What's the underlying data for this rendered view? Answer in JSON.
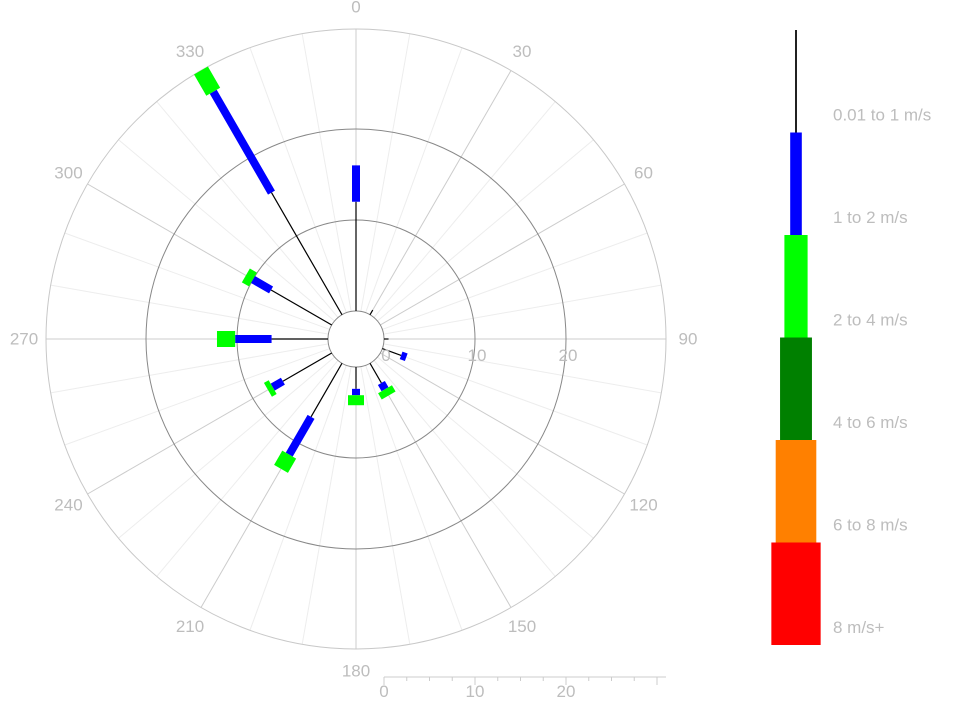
{
  "chart_data": {
    "type": "wind-rose",
    "direction_ticks": [
      "0",
      "30",
      "60",
      "90",
      "120",
      "150",
      "180",
      "210",
      "240",
      "270",
      "300",
      "330"
    ],
    "radial_ticks": [
      "0",
      "10",
      "20"
    ],
    "rlim": [
      0,
      30
    ],
    "grid": true,
    "legend_position": "right",
    "bins": [
      {
        "name": "0.01 to 1 m/s",
        "color": "#000000"
      },
      {
        "name": "1 to 2 m/s",
        "color": "#0000ff"
      },
      {
        "name": "2 to 4 m/s",
        "color": "#00ff00"
      },
      {
        "name": "4 to 6 m/s",
        "color": "#008000"
      },
      {
        "name": "6 to 8 m/s",
        "color": "#ff8000"
      },
      {
        "name": "8 m/s+",
        "color": "#ff0000"
      }
    ],
    "directions": [
      {
        "deg": 0,
        "cumulative": [
          12.0,
          16.0,
          16.0,
          16.0,
          16.0,
          16.0
        ]
      },
      {
        "deg": 30,
        "cumulative": [
          0.6,
          0.6,
          0.6,
          0.6,
          0.6,
          0.6
        ]
      },
      {
        "deg": 90,
        "cumulative": [
          0.5,
          0.5,
          0.5,
          0.5,
          0.5,
          0.5
        ]
      },
      {
        "deg": 110,
        "cumulative": [
          2.2,
          2.8,
          2.8,
          2.8,
          2.8,
          2.8
        ]
      },
      {
        "deg": 150,
        "cumulative": [
          2.5,
          3.3,
          4.1,
          4.1,
          4.1,
          4.1
        ]
      },
      {
        "deg": 180,
        "cumulative": [
          2.4,
          3.1,
          4.2,
          4.2,
          4.2,
          4.2
        ]
      },
      {
        "deg": 210,
        "cumulative": [
          6.8,
          11.6,
          13.4,
          13.4,
          13.4,
          13.4
        ]
      },
      {
        "deg": 240,
        "cumulative": [
          6.2,
          7.5,
          8.1,
          8.1,
          8.1,
          8.1
        ]
      },
      {
        "deg": 270,
        "cumulative": [
          6.2,
          10.2,
          12.2,
          12.2,
          12.2,
          12.2
        ]
      },
      {
        "deg": 300,
        "cumulative": [
          7.7,
          10.0,
          10.9,
          10.9,
          10.9,
          10.9
        ]
      },
      {
        "deg": 330,
        "cumulative": [
          15.5,
          28.3,
          31.0,
          31.0,
          31.0,
          31.0
        ]
      }
    ]
  }
}
